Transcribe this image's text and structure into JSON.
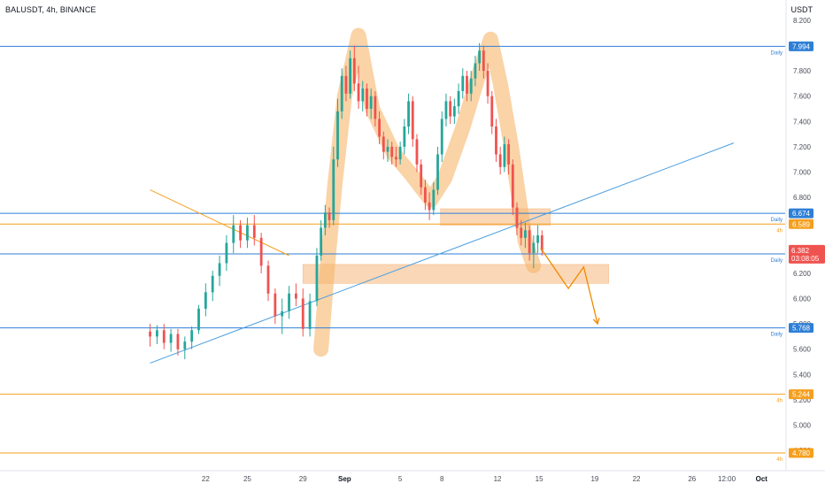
{
  "header": {
    "symbol_line": "BALUSDT, 4h, BINANCE",
    "currency": "USDT"
  },
  "colors": {
    "up": "#26a69a",
    "down": "#ef5350",
    "blue": "#2f7fd6",
    "orange": "#f59f1f",
    "highlight": "#f7b56a",
    "zone": "#f6b77c",
    "arrow": "#f08a00",
    "trend": "#4a9ee0"
  },
  "chart_data": {
    "type": "candlestick",
    "title": "BALUSDT, 4h, BINANCE",
    "ylim": [
      4.64,
      8.36
    ],
    "y_ticks": [
      "8.200",
      "8.000",
      "7.800",
      "7.600",
      "7.400",
      "7.200",
      "7.000",
      "6.800",
      "6.600",
      "6.400",
      "6.200",
      "6.000",
      "5.800",
      "5.600",
      "5.400",
      "5.200",
      "5.000",
      "4.800"
    ],
    "x_ticks": [
      {
        "label": "22",
        "day": 22
      },
      {
        "label": "25",
        "day": 25
      },
      {
        "label": "29",
        "day": 29
      },
      {
        "label": "Sep",
        "day": 32,
        "bold": true
      },
      {
        "label": "5",
        "day": 36
      },
      {
        "label": "8",
        "day": 39
      },
      {
        "label": "12",
        "day": 43
      },
      {
        "label": "15",
        "day": 46
      },
      {
        "label": "19",
        "day": 50
      },
      {
        "label": "22",
        "day": 53
      },
      {
        "label": "26",
        "day": 57
      },
      {
        "label": "12:00",
        "day": 59.5
      },
      {
        "label": "Oct",
        "day": 62,
        "bold": true
      }
    ],
    "levels": [
      {
        "price": 7.994,
        "label": "7.994",
        "tf": "Daily",
        "color": "#2f7fd6"
      },
      {
        "price": 6.674,
        "label": "6.674",
        "tf": "Daily",
        "color": "#2f7fd6"
      },
      {
        "price": 6.589,
        "label": "6.589",
        "tf": "4h",
        "color": "#f59f1f"
      },
      {
        "price": 6.353,
        "label": "6.353",
        "tf": "Daily",
        "color": "#2f7fd6"
      },
      {
        "price": 5.768,
        "label": "5.768",
        "tf": "Daily",
        "color": "#2f7fd6"
      },
      {
        "price": 5.244,
        "label": "5.244",
        "tf": "4h",
        "color": "#f59f1f"
      },
      {
        "price": 4.78,
        "label": "4.780",
        "tf": "4h",
        "color": "#f59f1f"
      }
    ],
    "current_price": {
      "price": 6.382,
      "label": "6.382",
      "countdown": "03:08:05",
      "color": "#ef5350"
    },
    "zones": [
      {
        "day_from": 38.9,
        "day_to": 46.8,
        "price_low": 6.58,
        "price_high": 6.71
      },
      {
        "day_from": 29.0,
        "day_to": 51.0,
        "price_low": 6.12,
        "price_high": 6.27
      }
    ],
    "trendlines": [
      {
        "from": {
          "day": 18.0,
          "price": 5.49
        },
        "to": {
          "day": 60.0,
          "price": 7.23
        },
        "color": "#4a9ee0"
      },
      {
        "from": {
          "day": 18.0,
          "price": 6.86
        },
        "to": {
          "day": 28.0,
          "price": 6.34
        },
        "color": "#f59f1f"
      }
    ],
    "highlight_path": [
      {
        "day": 30.3,
        "price": 5.6
      },
      {
        "day": 30.8,
        "price": 6.3
      },
      {
        "day": 31.3,
        "price": 6.9
      },
      {
        "day": 32.0,
        "price": 7.6
      },
      {
        "day": 33.0,
        "price": 8.08
      },
      {
        "day": 34.0,
        "price": 7.5
      },
      {
        "day": 35.5,
        "price": 7.15
      },
      {
        "day": 36.8,
        "price": 6.98
      },
      {
        "day": 38.2,
        "price": 6.78
      },
      {
        "day": 39.2,
        "price": 6.95
      },
      {
        "day": 40.5,
        "price": 7.35
      },
      {
        "day": 41.6,
        "price": 7.75
      },
      {
        "day": 42.5,
        "price": 8.05
      },
      {
        "day": 43.2,
        "price": 7.7
      },
      {
        "day": 44.0,
        "price": 7.2
      },
      {
        "day": 44.6,
        "price": 6.75
      },
      {
        "day": 45.0,
        "price": 6.45
      },
      {
        "day": 45.6,
        "price": 6.26
      }
    ],
    "projection": [
      {
        "day": 46.1,
        "price": 6.4
      },
      {
        "day": 48.1,
        "price": 6.08
      },
      {
        "day": 49.2,
        "price": 6.25
      },
      {
        "day": 50.2,
        "price": 5.8
      }
    ],
    "candles": [
      {
        "day": 18.0,
        "o": 5.74,
        "h": 5.8,
        "l": 5.62,
        "c": 5.7
      },
      {
        "day": 18.5,
        "o": 5.7,
        "h": 5.79,
        "l": 5.64,
        "c": 5.75
      },
      {
        "day": 19.0,
        "o": 5.75,
        "h": 5.8,
        "l": 5.6,
        "c": 5.65
      },
      {
        "day": 19.5,
        "o": 5.65,
        "h": 5.76,
        "l": 5.58,
        "c": 5.72
      },
      {
        "day": 20.0,
        "o": 5.72,
        "h": 5.76,
        "l": 5.55,
        "c": 5.6
      },
      {
        "day": 20.5,
        "o": 5.6,
        "h": 5.7,
        "l": 5.52,
        "c": 5.66
      },
      {
        "day": 21.0,
        "o": 5.66,
        "h": 5.78,
        "l": 5.6,
        "c": 5.75
      },
      {
        "day": 21.5,
        "o": 5.75,
        "h": 5.95,
        "l": 5.72,
        "c": 5.92
      },
      {
        "day": 22.0,
        "o": 5.92,
        "h": 6.12,
        "l": 5.86,
        "c": 6.05
      },
      {
        "day": 22.5,
        "o": 6.05,
        "h": 6.22,
        "l": 5.98,
        "c": 6.18
      },
      {
        "day": 23.0,
        "o": 6.18,
        "h": 6.34,
        "l": 6.1,
        "c": 6.28
      },
      {
        "day": 23.5,
        "o": 6.28,
        "h": 6.5,
        "l": 6.22,
        "c": 6.44
      },
      {
        "day": 24.0,
        "o": 6.44,
        "h": 6.66,
        "l": 6.36,
        "c": 6.58
      },
      {
        "day": 24.5,
        "o": 6.58,
        "h": 6.62,
        "l": 6.4,
        "c": 6.46
      },
      {
        "day": 25.0,
        "o": 6.46,
        "h": 6.64,
        "l": 6.4,
        "c": 6.58
      },
      {
        "day": 25.5,
        "o": 6.58,
        "h": 6.66,
        "l": 6.42,
        "c": 6.48
      },
      {
        "day": 26.0,
        "o": 6.48,
        "h": 6.52,
        "l": 6.2,
        "c": 6.26
      },
      {
        "day": 26.5,
        "o": 6.26,
        "h": 6.3,
        "l": 5.98,
        "c": 6.04
      },
      {
        "day": 27.0,
        "o": 6.04,
        "h": 6.08,
        "l": 5.8,
        "c": 5.86
      },
      {
        "day": 27.5,
        "o": 5.86,
        "h": 6.0,
        "l": 5.72,
        "c": 5.9
      },
      {
        "day": 28.0,
        "o": 5.9,
        "h": 6.1,
        "l": 5.84,
        "c": 6.04
      },
      {
        "day": 28.5,
        "o": 6.04,
        "h": 6.12,
        "l": 5.94,
        "c": 6.0
      },
      {
        "day": 29.0,
        "o": 6.0,
        "h": 6.08,
        "l": 5.7,
        "c": 5.76
      },
      {
        "day": 29.5,
        "o": 5.76,
        "h": 6.04,
        "l": 5.7,
        "c": 5.98
      },
      {
        "day": 30.0,
        "o": 5.98,
        "h": 6.4,
        "l": 5.94,
        "c": 6.34
      },
      {
        "day": 30.3,
        "o": 6.34,
        "h": 6.62,
        "l": 6.3,
        "c": 6.56
      },
      {
        "day": 30.6,
        "o": 6.56,
        "h": 6.74,
        "l": 6.5,
        "c": 6.68
      },
      {
        "day": 30.9,
        "o": 6.68,
        "h": 6.72,
        "l": 6.56,
        "c": 6.62
      },
      {
        "day": 31.2,
        "o": 6.62,
        "h": 7.2,
        "l": 6.58,
        "c": 7.1
      },
      {
        "day": 31.5,
        "o": 7.1,
        "h": 7.58,
        "l": 7.04,
        "c": 7.48
      },
      {
        "day": 31.8,
        "o": 7.48,
        "h": 7.82,
        "l": 7.42,
        "c": 7.76
      },
      {
        "day": 32.1,
        "o": 7.76,
        "h": 7.84,
        "l": 7.56,
        "c": 7.62
      },
      {
        "day": 32.4,
        "o": 7.62,
        "h": 7.96,
        "l": 7.58,
        "c": 7.9
      },
      {
        "day": 32.7,
        "o": 7.9,
        "h": 8.0,
        "l": 7.64,
        "c": 7.7
      },
      {
        "day": 33.0,
        "o": 7.7,
        "h": 7.84,
        "l": 7.5,
        "c": 7.56
      },
      {
        "day": 33.3,
        "o": 7.56,
        "h": 7.72,
        "l": 7.48,
        "c": 7.66
      },
      {
        "day": 33.6,
        "o": 7.66,
        "h": 7.7,
        "l": 7.44,
        "c": 7.5
      },
      {
        "day": 33.9,
        "o": 7.5,
        "h": 7.66,
        "l": 7.42,
        "c": 7.6
      },
      {
        "day": 34.2,
        "o": 7.6,
        "h": 7.64,
        "l": 7.36,
        "c": 7.42
      },
      {
        "day": 34.5,
        "o": 7.42,
        "h": 7.48,
        "l": 7.22,
        "c": 7.28
      },
      {
        "day": 34.8,
        "o": 7.28,
        "h": 7.32,
        "l": 7.1,
        "c": 7.16
      },
      {
        "day": 35.1,
        "o": 7.16,
        "h": 7.26,
        "l": 7.08,
        "c": 7.2
      },
      {
        "day": 35.4,
        "o": 7.2,
        "h": 7.24,
        "l": 7.06,
        "c": 7.12
      },
      {
        "day": 35.7,
        "o": 7.12,
        "h": 7.2,
        "l": 7.04,
        "c": 7.1
      },
      {
        "day": 36.0,
        "o": 7.1,
        "h": 7.24,
        "l": 7.06,
        "c": 7.2
      },
      {
        "day": 36.3,
        "o": 7.2,
        "h": 7.42,
        "l": 7.14,
        "c": 7.36
      },
      {
        "day": 36.6,
        "o": 7.36,
        "h": 7.62,
        "l": 7.3,
        "c": 7.56
      },
      {
        "day": 36.9,
        "o": 7.56,
        "h": 7.6,
        "l": 7.2,
        "c": 7.26
      },
      {
        "day": 37.2,
        "o": 7.26,
        "h": 7.3,
        "l": 7.0,
        "c": 7.06
      },
      {
        "day": 37.5,
        "o": 7.06,
        "h": 7.1,
        "l": 6.82,
        "c": 6.88
      },
      {
        "day": 37.8,
        "o": 6.88,
        "h": 6.94,
        "l": 6.7,
        "c": 6.76
      },
      {
        "day": 38.1,
        "o": 6.76,
        "h": 6.84,
        "l": 6.62,
        "c": 6.7
      },
      {
        "day": 38.4,
        "o": 6.7,
        "h": 6.92,
        "l": 6.66,
        "c": 6.86
      },
      {
        "day": 38.7,
        "o": 6.86,
        "h": 7.2,
        "l": 6.82,
        "c": 7.14
      },
      {
        "day": 39.0,
        "o": 7.14,
        "h": 7.48,
        "l": 7.08,
        "c": 7.42
      },
      {
        "day": 39.3,
        "o": 7.42,
        "h": 7.62,
        "l": 7.36,
        "c": 7.56
      },
      {
        "day": 39.6,
        "o": 7.56,
        "h": 7.6,
        "l": 7.38,
        "c": 7.44
      },
      {
        "day": 39.9,
        "o": 7.44,
        "h": 7.58,
        "l": 7.38,
        "c": 7.52
      },
      {
        "day": 40.2,
        "o": 7.52,
        "h": 7.7,
        "l": 7.46,
        "c": 7.64
      },
      {
        "day": 40.5,
        "o": 7.64,
        "h": 7.82,
        "l": 7.58,
        "c": 7.76
      },
      {
        "day": 40.8,
        "o": 7.76,
        "h": 7.8,
        "l": 7.56,
        "c": 7.62
      },
      {
        "day": 41.1,
        "o": 7.62,
        "h": 7.8,
        "l": 7.56,
        "c": 7.74
      },
      {
        "day": 41.4,
        "o": 7.74,
        "h": 7.92,
        "l": 7.68,
        "c": 7.86
      },
      {
        "day": 41.7,
        "o": 7.86,
        "h": 8.02,
        "l": 7.8,
        "c": 7.96
      },
      {
        "day": 42.0,
        "o": 7.96,
        "h": 8.0,
        "l": 7.74,
        "c": 7.8
      },
      {
        "day": 42.3,
        "o": 7.8,
        "h": 7.86,
        "l": 7.54,
        "c": 7.6
      },
      {
        "day": 42.6,
        "o": 7.6,
        "h": 7.64,
        "l": 7.3,
        "c": 7.36
      },
      {
        "day": 42.9,
        "o": 7.36,
        "h": 7.42,
        "l": 7.08,
        "c": 7.14
      },
      {
        "day": 43.2,
        "o": 7.14,
        "h": 7.2,
        "l": 6.98,
        "c": 7.04
      },
      {
        "day": 43.5,
        "o": 7.04,
        "h": 7.28,
        "l": 7.0,
        "c": 7.22
      },
      {
        "day": 43.8,
        "o": 7.22,
        "h": 7.26,
        "l": 6.98,
        "c": 7.06
      },
      {
        "day": 44.1,
        "o": 7.06,
        "h": 7.1,
        "l": 6.66,
        "c": 6.72
      },
      {
        "day": 44.4,
        "o": 6.72,
        "h": 6.76,
        "l": 6.5,
        "c": 6.56
      },
      {
        "day": 44.7,
        "o": 6.56,
        "h": 6.62,
        "l": 6.42,
        "c": 6.48
      },
      {
        "day": 45.0,
        "o": 6.48,
        "h": 6.6,
        "l": 6.4,
        "c": 6.54
      },
      {
        "day": 45.3,
        "o": 6.54,
        "h": 6.58,
        "l": 6.3,
        "c": 6.36
      },
      {
        "day": 45.6,
        "o": 6.36,
        "h": 6.5,
        "l": 6.24,
        "c": 6.44
      },
      {
        "day": 45.9,
        "o": 6.44,
        "h": 6.58,
        "l": 6.36,
        "c": 6.5
      },
      {
        "day": 46.2,
        "o": 6.5,
        "h": 6.54,
        "l": 6.34,
        "c": 6.38
      }
    ]
  }
}
